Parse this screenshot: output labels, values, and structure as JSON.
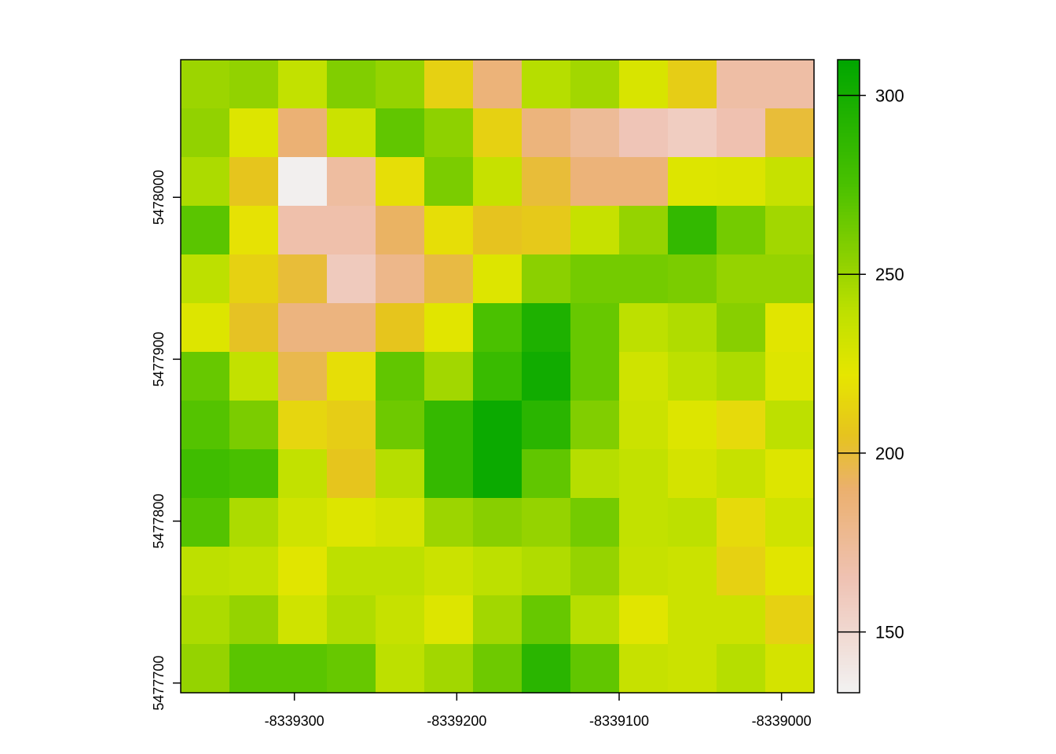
{
  "chart_data": {
    "type": "heatmap",
    "title": "",
    "xlabel": "",
    "ylabel": "",
    "x_ticks": [
      {
        "value": -8339300,
        "label": "-8339300"
      },
      {
        "value": -8339200,
        "label": "-8339200"
      },
      {
        "value": -8339100,
        "label": "-8339100"
      },
      {
        "value": -8339000,
        "label": "-8339000"
      }
    ],
    "y_ticks": [
      {
        "value": 5478000,
        "label": "5478000"
      },
      {
        "value": 5477900,
        "label": "5477900"
      },
      {
        "value": 5477800,
        "label": "5477800"
      },
      {
        "value": 5477700,
        "label": "5477700"
      }
    ],
    "xlim": [
      -8339370,
      -8338980
    ],
    "ylim": [
      5477694,
      5478085
    ],
    "rows": 13,
    "cols": 13,
    "values": [
      [
        250,
        253,
        238,
        258,
        252,
        212,
        186,
        242,
        248,
        228,
        210,
        170,
        170
      ],
      [
        253,
        226,
        188,
        234,
        268,
        254,
        212,
        185,
        175,
        163,
        158,
        166,
        200
      ],
      [
        245,
        206,
        135,
        172,
        218,
        260,
        236,
        200,
        186,
        186,
        226,
        227,
        236
      ],
      [
        270,
        220,
        168,
        168,
        192,
        218,
        205,
        208,
        236,
        252,
        286,
        262,
        248
      ],
      [
        240,
        212,
        200,
        160,
        180,
        198,
        226,
        255,
        262,
        262,
        260,
        252,
        252
      ],
      [
        226,
        204,
        184,
        184,
        206,
        224,
        275,
        296,
        266,
        240,
        244,
        256,
        224
      ],
      [
        266,
        238,
        196,
        218,
        268,
        248,
        283,
        302,
        266,
        232,
        240,
        245,
        226
      ],
      [
        272,
        260,
        214,
        210,
        264,
        285,
        305,
        290,
        258,
        234,
        226,
        216,
        240
      ],
      [
        280,
        276,
        238,
        206,
        242,
        285,
        305,
        268,
        242,
        238,
        230,
        236,
        226
      ],
      [
        272,
        245,
        232,
        226,
        230,
        250,
        256,
        252,
        262,
        238,
        240,
        216,
        232
      ],
      [
        240,
        238,
        224,
        240,
        240,
        234,
        240,
        244,
        252,
        236,
        234,
        212,
        224
      ],
      [
        245,
        252,
        232,
        244,
        236,
        226,
        248,
        266,
        242,
        224,
        234,
        234,
        212
      ],
      [
        252,
        270,
        270,
        266,
        240,
        248,
        264,
        290,
        268,
        236,
        234,
        242,
        230
      ]
    ],
    "colorbar": {
      "min": 133,
      "max": 310,
      "ticks": [
        {
          "value": 150,
          "label": "150"
        },
        {
          "value": 200,
          "label": "200"
        },
        {
          "value": 250,
          "label": "250"
        },
        {
          "value": 300,
          "label": "300"
        }
      ],
      "palette": [
        {
          "v": 133,
          "color": "#f2f2f2"
        },
        {
          "v": 165,
          "color": "#efc2b3"
        },
        {
          "v": 190,
          "color": "#ebb06e"
        },
        {
          "v": 205,
          "color": "#e6c31f"
        },
        {
          "v": 222,
          "color": "#e6e600"
        },
        {
          "v": 240,
          "color": "#bde000"
        },
        {
          "v": 255,
          "color": "#8bd000"
        },
        {
          "v": 275,
          "color": "#4ac100"
        },
        {
          "v": 310,
          "color": "#00a600"
        }
      ]
    },
    "grid": false,
    "legend": "right"
  }
}
